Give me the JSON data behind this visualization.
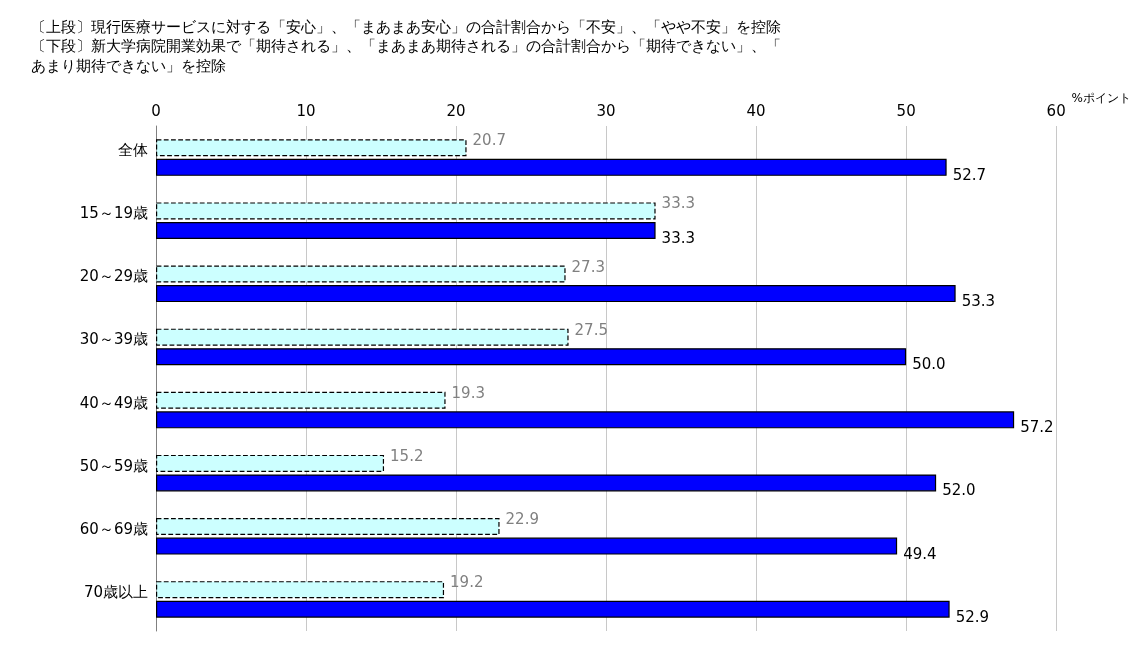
{
  "chart_data": {
    "type": "bar",
    "orientation": "horizontal",
    "title": "〔上段〕現行医療サービスに対する「安心」、「まあまあ安心」の合計割合から「不安」、「やや不安」を控除",
    "subtitle": "〔下段〕新大学病院開業効果で「期待される」、「まあまあ期待される」の合計割合から「期待できない」、「あまり期待できない」を控除",
    "xlabel": "%ポイント",
    "categories": [
      "全体",
      "15～19歳",
      "20～29歳",
      "30～39歳",
      "40～49歳",
      "50～59歳",
      "60～69歳",
      "70歳以上"
    ],
    "series": [
      {
        "color": "#ccffff",
        "values": [
          20.7,
          33.3,
          27.3,
          27.5,
          19.3,
          15.2,
          22.9,
          19.2
        ],
        "value_labels": [
          "20.7",
          "33.3",
          "27.3",
          "27.5",
          "19.3",
          "15.2",
          "22.9",
          "19.2"
        ]
      },
      {
        "color": "#0000ff",
        "values": [
          52.7,
          33.3,
          53.3,
          50.0,
          57.2,
          52.0,
          49.4,
          52.9
        ],
        "value_labels": [
          "52.7",
          "33.3",
          "53.3",
          "50.0",
          "57.2",
          "52.0",
          "49.4",
          "52.9"
        ]
      }
    ],
    "xlim": [
      0,
      60
    ],
    "xticks": [
      0,
      10,
      20,
      30,
      40,
      50,
      60
    ],
    "grid": "x"
  }
}
